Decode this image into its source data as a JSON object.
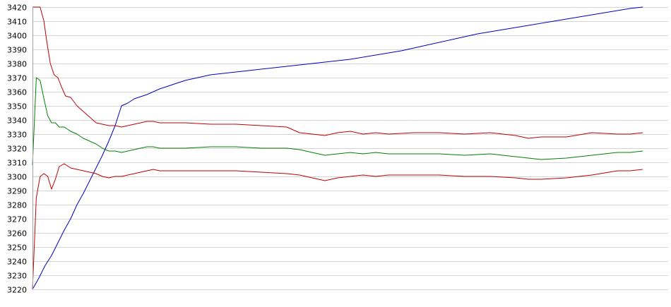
{
  "chart_data": {
    "type": "line",
    "title": "",
    "xlabel": "",
    "ylabel": "",
    "ylim": [
      3220,
      3420
    ],
    "yticks": [
      3220,
      3230,
      3240,
      3250,
      3260,
      3270,
      3280,
      3290,
      3300,
      3310,
      3320,
      3330,
      3340,
      3350,
      3360,
      3370,
      3380,
      3390,
      3400,
      3410,
      3420
    ],
    "xlim": [
      0,
      1000
    ],
    "grid": true,
    "legend": "none",
    "series": [
      {
        "color": "#0000c0",
        "points": [
          [
            0,
            3220
          ],
          [
            10,
            3228
          ],
          [
            20,
            3237
          ],
          [
            30,
            3244
          ],
          [
            40,
            3253
          ],
          [
            50,
            3262
          ],
          [
            60,
            3270
          ],
          [
            70,
            3280
          ],
          [
            80,
            3288
          ],
          [
            90,
            3297
          ],
          [
            100,
            3306
          ],
          [
            110,
            3315
          ],
          [
            120,
            3325
          ],
          [
            130,
            3336
          ],
          [
            140,
            3350
          ],
          [
            150,
            3352
          ],
          [
            160,
            3355
          ],
          [
            180,
            3358
          ],
          [
            200,
            3362
          ],
          [
            220,
            3365
          ],
          [
            240,
            3368
          ],
          [
            260,
            3370
          ],
          [
            280,
            3372
          ],
          [
            300,
            3373
          ],
          [
            340,
            3375
          ],
          [
            380,
            3377
          ],
          [
            420,
            3379
          ],
          [
            460,
            3381
          ],
          [
            500,
            3383
          ],
          [
            540,
            3386
          ],
          [
            580,
            3389
          ],
          [
            620,
            3393
          ],
          [
            660,
            3397
          ],
          [
            700,
            3401
          ],
          [
            740,
            3404
          ],
          [
            780,
            3407
          ],
          [
            820,
            3410
          ],
          [
            860,
            3413
          ],
          [
            900,
            3416
          ],
          [
            940,
            3419
          ],
          [
            960,
            3420
          ]
        ]
      },
      {
        "color": "#c00000",
        "points": [
          [
            0,
            3420
          ],
          [
            12,
            3420
          ],
          [
            18,
            3410
          ],
          [
            22,
            3397
          ],
          [
            28,
            3380
          ],
          [
            34,
            3372
          ],
          [
            40,
            3370
          ],
          [
            46,
            3363
          ],
          [
            52,
            3357
          ],
          [
            60,
            3356
          ],
          [
            70,
            3350
          ],
          [
            80,
            3346
          ],
          [
            90,
            3342
          ],
          [
            100,
            3338
          ],
          [
            110,
            3337
          ],
          [
            120,
            3336
          ],
          [
            130,
            3336
          ],
          [
            140,
            3335
          ],
          [
            150,
            3336
          ],
          [
            160,
            3337
          ],
          [
            170,
            3338
          ],
          [
            180,
            3339
          ],
          [
            190,
            3339
          ],
          [
            200,
            3338
          ],
          [
            240,
            3338
          ],
          [
            280,
            3337
          ],
          [
            320,
            3337
          ],
          [
            360,
            3336
          ],
          [
            400,
            3335
          ],
          [
            420,
            3331
          ],
          [
            440,
            3330
          ],
          [
            460,
            3329
          ],
          [
            480,
            3331
          ],
          [
            500,
            3332
          ],
          [
            520,
            3330
          ],
          [
            540,
            3331
          ],
          [
            560,
            3330
          ],
          [
            600,
            3331
          ],
          [
            640,
            3331
          ],
          [
            680,
            3330
          ],
          [
            720,
            3331
          ],
          [
            760,
            3329
          ],
          [
            780,
            3327
          ],
          [
            800,
            3328
          ],
          [
            840,
            3328
          ],
          [
            880,
            3331
          ],
          [
            920,
            3330
          ],
          [
            940,
            3330
          ],
          [
            960,
            3331
          ]
        ]
      },
      {
        "color": "#008000",
        "points": [
          [
            0,
            3308
          ],
          [
            6,
            3370
          ],
          [
            12,
            3368
          ],
          [
            18,
            3355
          ],
          [
            24,
            3343
          ],
          [
            30,
            3338
          ],
          [
            36,
            3338
          ],
          [
            42,
            3335
          ],
          [
            50,
            3335
          ],
          [
            60,
            3332
          ],
          [
            70,
            3330
          ],
          [
            80,
            3327
          ],
          [
            90,
            3325
          ],
          [
            100,
            3323
          ],
          [
            110,
            3320
          ],
          [
            120,
            3318
          ],
          [
            130,
            3318
          ],
          [
            140,
            3317
          ],
          [
            150,
            3318
          ],
          [
            160,
            3319
          ],
          [
            170,
            3320
          ],
          [
            180,
            3321
          ],
          [
            190,
            3321
          ],
          [
            200,
            3320
          ],
          [
            240,
            3320
          ],
          [
            280,
            3321
          ],
          [
            320,
            3321
          ],
          [
            360,
            3320
          ],
          [
            400,
            3320
          ],
          [
            420,
            3319
          ],
          [
            440,
            3317
          ],
          [
            460,
            3315
          ],
          [
            480,
            3316
          ],
          [
            500,
            3317
          ],
          [
            520,
            3316
          ],
          [
            540,
            3317
          ],
          [
            560,
            3316
          ],
          [
            600,
            3316
          ],
          [
            640,
            3316
          ],
          [
            680,
            3315
          ],
          [
            720,
            3316
          ],
          [
            760,
            3314
          ],
          [
            780,
            3313
          ],
          [
            800,
            3312
          ],
          [
            840,
            3313
          ],
          [
            880,
            3315
          ],
          [
            920,
            3317
          ],
          [
            940,
            3317
          ],
          [
            960,
            3318
          ]
        ]
      },
      {
        "color": "#c00000",
        "points": [
          [
            0,
            3220
          ],
          [
            6,
            3285
          ],
          [
            12,
            3300
          ],
          [
            18,
            3302
          ],
          [
            24,
            3300
          ],
          [
            30,
            3291
          ],
          [
            36,
            3298
          ],
          [
            42,
            3307
          ],
          [
            50,
            3309
          ],
          [
            60,
            3306
          ],
          [
            70,
            3305
          ],
          [
            80,
            3304
          ],
          [
            90,
            3303
          ],
          [
            100,
            3302
          ],
          [
            110,
            3300
          ],
          [
            120,
            3299
          ],
          [
            130,
            3300
          ],
          [
            140,
            3300
          ],
          [
            150,
            3301
          ],
          [
            160,
            3302
          ],
          [
            170,
            3303
          ],
          [
            180,
            3304
          ],
          [
            190,
            3305
          ],
          [
            200,
            3304
          ],
          [
            240,
            3304
          ],
          [
            280,
            3304
          ],
          [
            320,
            3304
          ],
          [
            360,
            3303
          ],
          [
            400,
            3302
          ],
          [
            420,
            3301
          ],
          [
            440,
            3299
          ],
          [
            460,
            3297
          ],
          [
            480,
            3299
          ],
          [
            500,
            3300
          ],
          [
            520,
            3301
          ],
          [
            540,
            3300
          ],
          [
            560,
            3301
          ],
          [
            600,
            3301
          ],
          [
            640,
            3301
          ],
          [
            680,
            3300
          ],
          [
            720,
            3300
          ],
          [
            760,
            3299
          ],
          [
            780,
            3298
          ],
          [
            800,
            3298
          ],
          [
            840,
            3299
          ],
          [
            880,
            3301
          ],
          [
            920,
            3304
          ],
          [
            940,
            3304
          ],
          [
            960,
            3305
          ]
        ]
      }
    ]
  }
}
